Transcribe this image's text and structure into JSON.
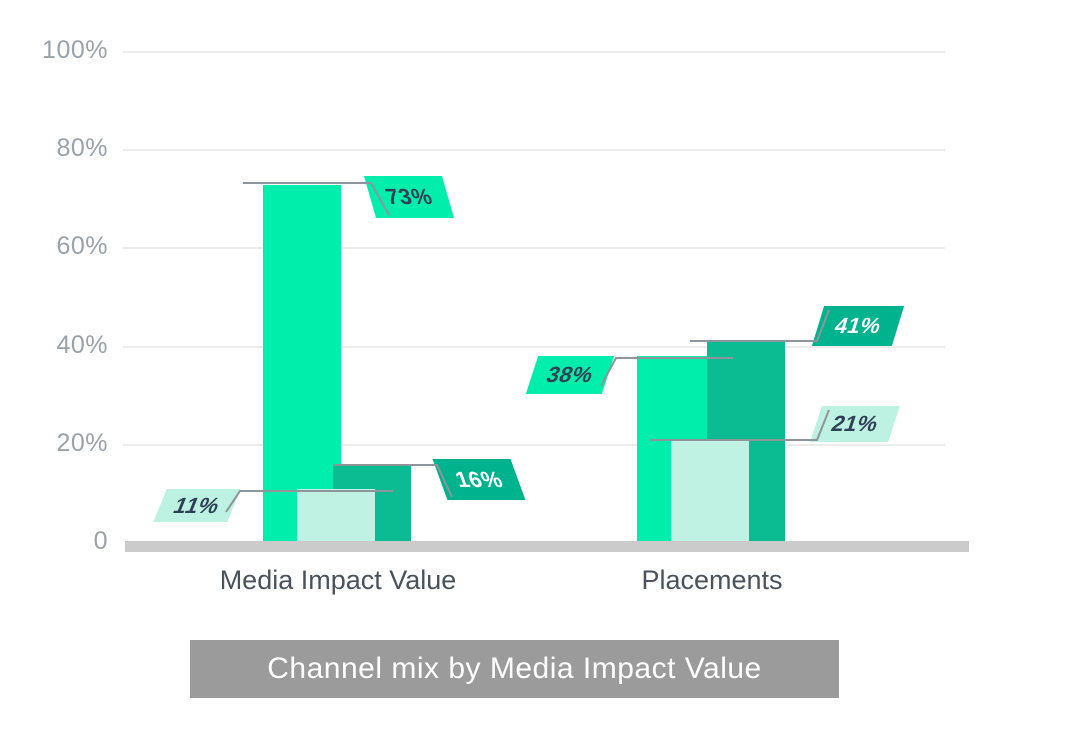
{
  "title": {
    "text": "Channel mix by Media Impact Value"
  },
  "chart_data": {
    "type": "bar",
    "title": "Channel mix by Media Impact Value",
    "categories": [
      "Media Impact Value",
      "Placements"
    ],
    "series": [
      {
        "name": "green",
        "color": "#00eeac",
        "label_color": "#00eeac",
        "values": [
          73,
          38
        ]
      },
      {
        "name": "teal",
        "color": "#0bbc93",
        "label_color": "#00b38f",
        "values": [
          16,
          41
        ]
      },
      {
        "name": "mint",
        "color": "#c0f2e3",
        "label_color": "#bdf1e2",
        "values": [
          11,
          21
        ]
      }
    ],
    "value_labels": [
      "73%",
      "16%",
      "11%",
      "38%",
      "41%",
      "21%"
    ],
    "value_label_format": "{v}%",
    "y_axis": {
      "tick_labels": [
        "100%",
        "80%",
        "60%",
        "40%",
        "20%",
        "0"
      ],
      "tick_values": [
        100,
        80,
        60,
        40,
        20,
        0
      ],
      "range": [
        0,
        100
      ]
    },
    "grid": "horizontal",
    "legend": "none"
  },
  "colors": {
    "grid": "#ececec",
    "axis_baseline": "#cbcbcb",
    "leader_line": "#8e959b",
    "tick_text": "#9ba2aa",
    "category_text": "#4a525c",
    "callout_text_dark": "#2e4154",
    "callout_text_light": "#ffffff",
    "title_bg": "#9b9b9b",
    "title_text": "#ffffff"
  }
}
